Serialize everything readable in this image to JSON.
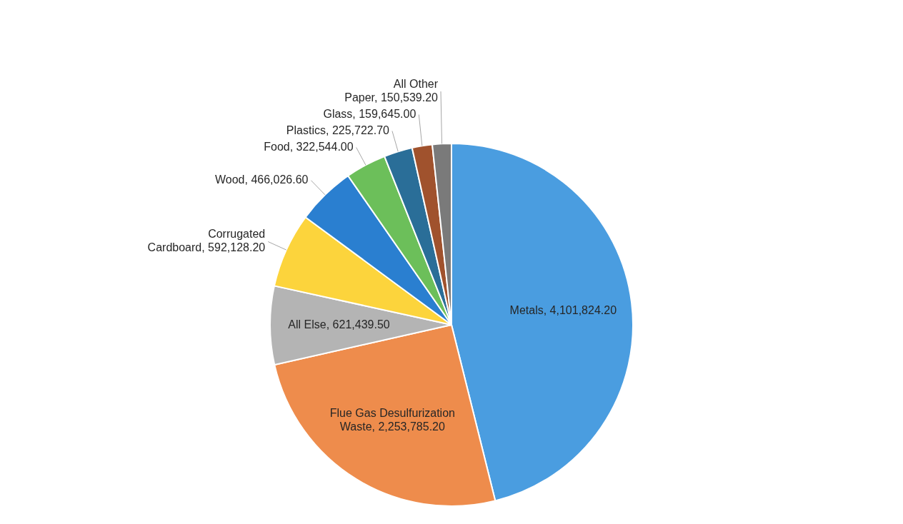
{
  "chart_data": {
    "type": "pie",
    "categories": [
      "Metals",
      "Flue Gas Desulfurization Waste",
      "All Else",
      "Corrugated Cardboard",
      "Wood",
      "Food",
      "Plastics",
      "Glass",
      "All Other Paper"
    ],
    "values": [
      4101824.2,
      2253785.2,
      621439.5,
      592128.2,
      466026.6,
      322544.0,
      225722.7,
      159645.0,
      150539.2
    ],
    "value_labels": [
      "4,101,824.20",
      "2,253,785.20",
      "621,439.50",
      "592,128.20",
      "466,026.60",
      "322,544.00",
      "225,722.70",
      "159,645.00",
      "150,539.20"
    ],
    "colors": [
      "#4a9de0",
      "#ee8c4c",
      "#b4b4b4",
      "#fcd43c",
      "#2a7fd0",
      "#6cbf5a",
      "#2a6e98",
      "#a0522d",
      "#7a7a7a"
    ]
  }
}
